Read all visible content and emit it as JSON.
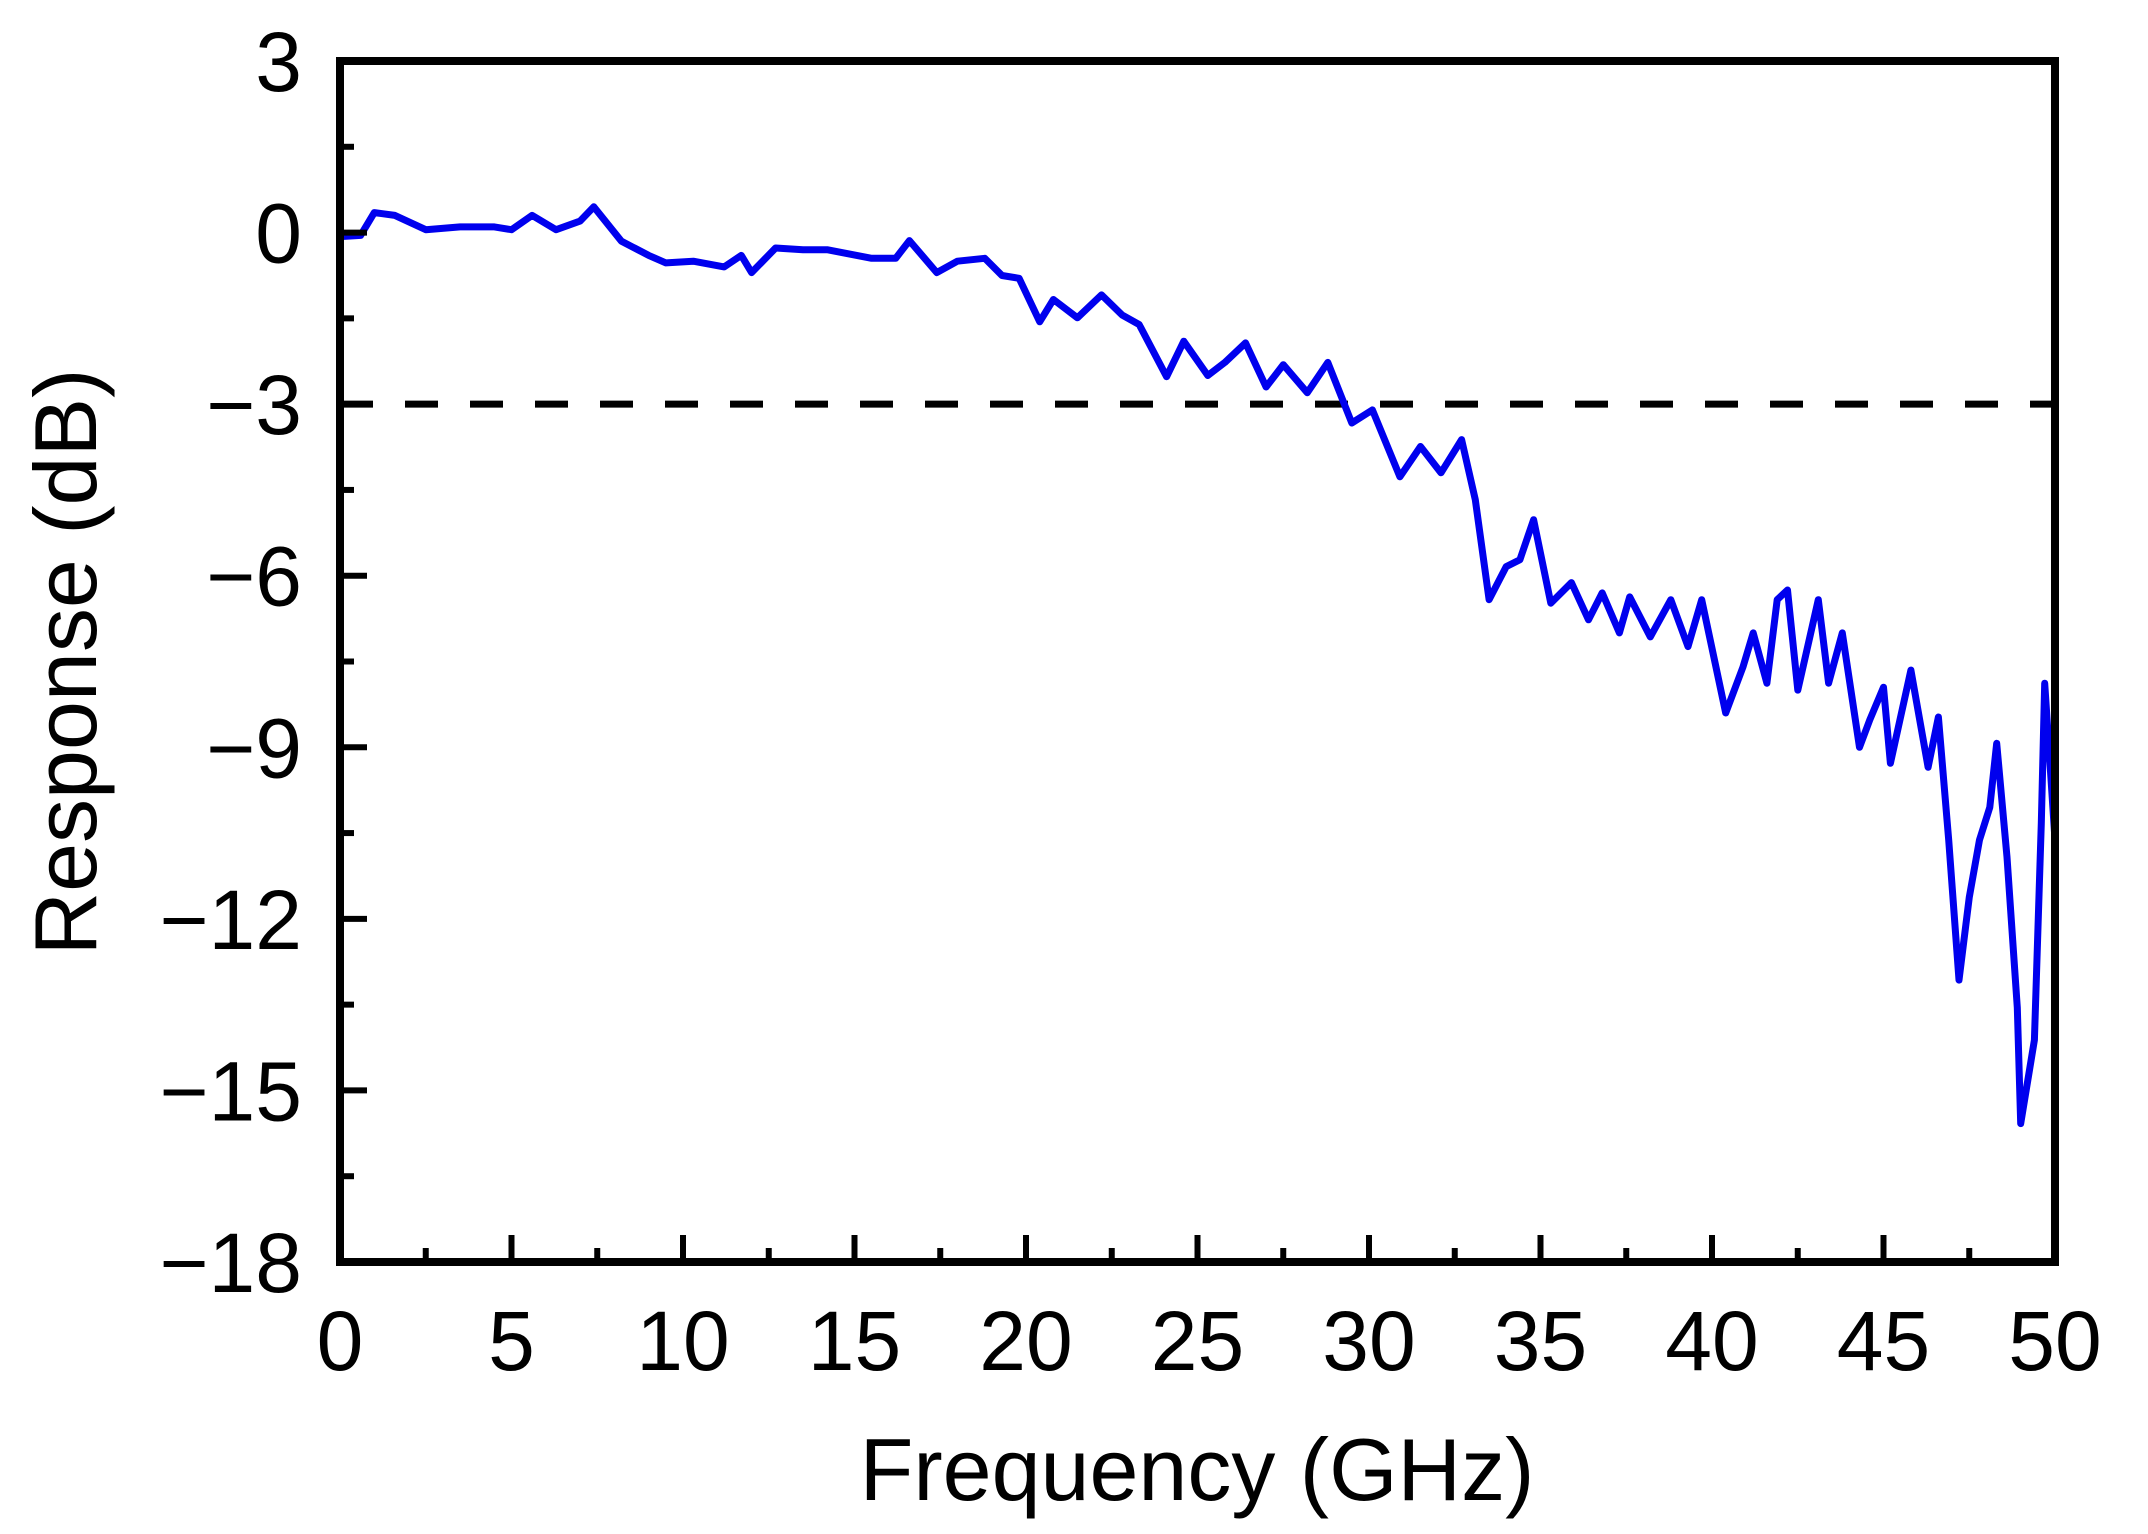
{
  "chart_data": {
    "type": "line",
    "title": "",
    "xlabel": "Frequency (GHz)",
    "ylabel": "Response (dB)",
    "xlim": [
      0,
      50
    ],
    "ylim": [
      -18,
      3
    ],
    "x_ticks": [
      0,
      5,
      10,
      15,
      20,
      25,
      30,
      35,
      40,
      45,
      50
    ],
    "x_tick_labels": [
      "0",
      "5",
      "10",
      "15",
      "20",
      "25",
      "30",
      "35",
      "40",
      "45",
      "50"
    ],
    "y_ticks": [
      3,
      0,
      -3,
      -6,
      -9,
      -12,
      -15,
      -18
    ],
    "y_tick_labels": [
      "3",
      "0",
      "−3",
      "−6",
      "−9",
      "−12",
      "−15",
      "−18"
    ],
    "x_minor_step": 2.5,
    "y_minor_step": 1.5,
    "grid": false,
    "legend": null,
    "reference_lines": [
      {
        "name": "-3 dB bandwidth line",
        "y": -3,
        "style": "dashed",
        "color": "#000000"
      }
    ],
    "series": [
      {
        "name": "Response",
        "color": "#0000ee",
        "x": [
          0,
          0.6,
          1.0,
          1.6,
          2.5,
          3.5,
          4.5,
          5.0,
          5.6,
          6.3,
          7.0,
          7.4,
          8.2,
          9.0,
          9.5,
          10.3,
          11.2,
          11.7,
          12.0,
          12.7,
          13.5,
          14.2,
          15.5,
          16.2,
          16.6,
          17.4,
          18.0,
          18.8,
          19.3,
          19.8,
          20.4,
          20.8,
          21.5,
          22.2,
          22.8,
          23.3,
          24.1,
          24.6,
          25.3,
          25.8,
          26.4,
          27.0,
          27.5,
          28.2,
          28.8,
          29.5,
          30.1,
          30.9,
          31.5,
          32.1,
          32.7,
          33.1,
          33.5,
          34.0,
          34.4,
          34.8,
          35.3,
          35.9,
          36.4,
          36.8,
          37.3,
          37.6,
          38.2,
          38.8,
          39.3,
          39.7,
          40.4,
          40.9,
          41.2,
          41.6,
          41.9,
          42.2,
          42.5,
          43.1,
          43.4,
          43.8,
          44.3,
          44.6,
          45.0,
          45.2,
          45.8,
          46.3,
          46.6,
          46.9,
          47.2,
          47.5,
          47.8,
          48.1,
          48.3,
          48.6,
          48.9,
          49.0,
          49.4,
          49.6,
          49.7,
          50.0
        ],
        "y": [
          -0.07,
          -0.05,
          0.35,
          0.3,
          0.05,
          0.1,
          0.1,
          0.05,
          0.3,
          0.05,
          0.2,
          0.45,
          -0.15,
          -0.4,
          -0.53,
          -0.5,
          -0.6,
          -0.4,
          -0.7,
          -0.27,
          -0.3,
          -0.3,
          -0.45,
          -0.45,
          -0.14,
          -0.7,
          -0.5,
          -0.45,
          -0.75,
          -0.8,
          -1.56,
          -1.17,
          -1.49,
          -1.09,
          -1.44,
          -1.61,
          -2.52,
          -1.9,
          -2.5,
          -2.27,
          -1.93,
          -2.7,
          -2.31,
          -2.8,
          -2.27,
          -3.33,
          -3.1,
          -4.27,
          -3.74,
          -4.2,
          -3.62,
          -4.67,
          -6.42,
          -5.84,
          -5.72,
          -5.02,
          -6.48,
          -6.12,
          -6.77,
          -6.3,
          -7.0,
          -6.37,
          -7.07,
          -6.42,
          -7.24,
          -6.42,
          -8.4,
          -7.6,
          -7.0,
          -7.88,
          -6.42,
          -6.25,
          -8.0,
          -6.42,
          -7.88,
          -7.0,
          -9.0,
          -8.52,
          -7.95,
          -9.28,
          -7.65,
          -9.35,
          -8.47,
          -10.62,
          -13.07,
          -11.62,
          -10.62,
          -10.05,
          -8.93,
          -10.92,
          -13.55,
          -15.58,
          -14.12,
          -10.33,
          -7.88,
          -10.62
        ]
      }
    ]
  }
}
